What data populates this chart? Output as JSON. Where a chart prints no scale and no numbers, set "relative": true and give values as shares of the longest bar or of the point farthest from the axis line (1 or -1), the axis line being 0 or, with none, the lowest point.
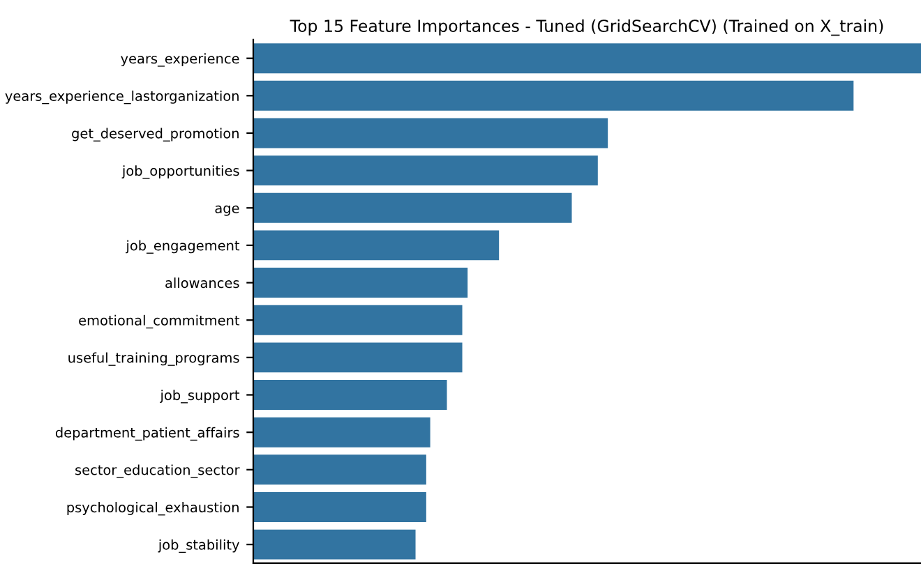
{
  "chart_data": {
    "type": "bar",
    "orientation": "horizontal",
    "relative": true,
    "title": "Top 15 Feature Importances - Tuned (GridSearchCV) (Trained on X_train)",
    "categories": [
      "years_experience",
      "years_experience_lastorganization",
      "get_deserved_promotion",
      "job_opportunities",
      "age",
      "job_engagement",
      "allowances",
      "emotional_commitment",
      "useful_training_programs",
      "job_support",
      "department_patient_affairs",
      "sector_education_sector",
      "psychological_exhaustion",
      "job_stability"
    ],
    "values": [
      1,
      0.899,
      0.531,
      0.516,
      0.477,
      0.368,
      0.321,
      0.313,
      0.313,
      0.29,
      0.265,
      0.259,
      0.259,
      0.243
    ],
    "color": "#3274a1",
    "grid": false,
    "legend": false
  }
}
